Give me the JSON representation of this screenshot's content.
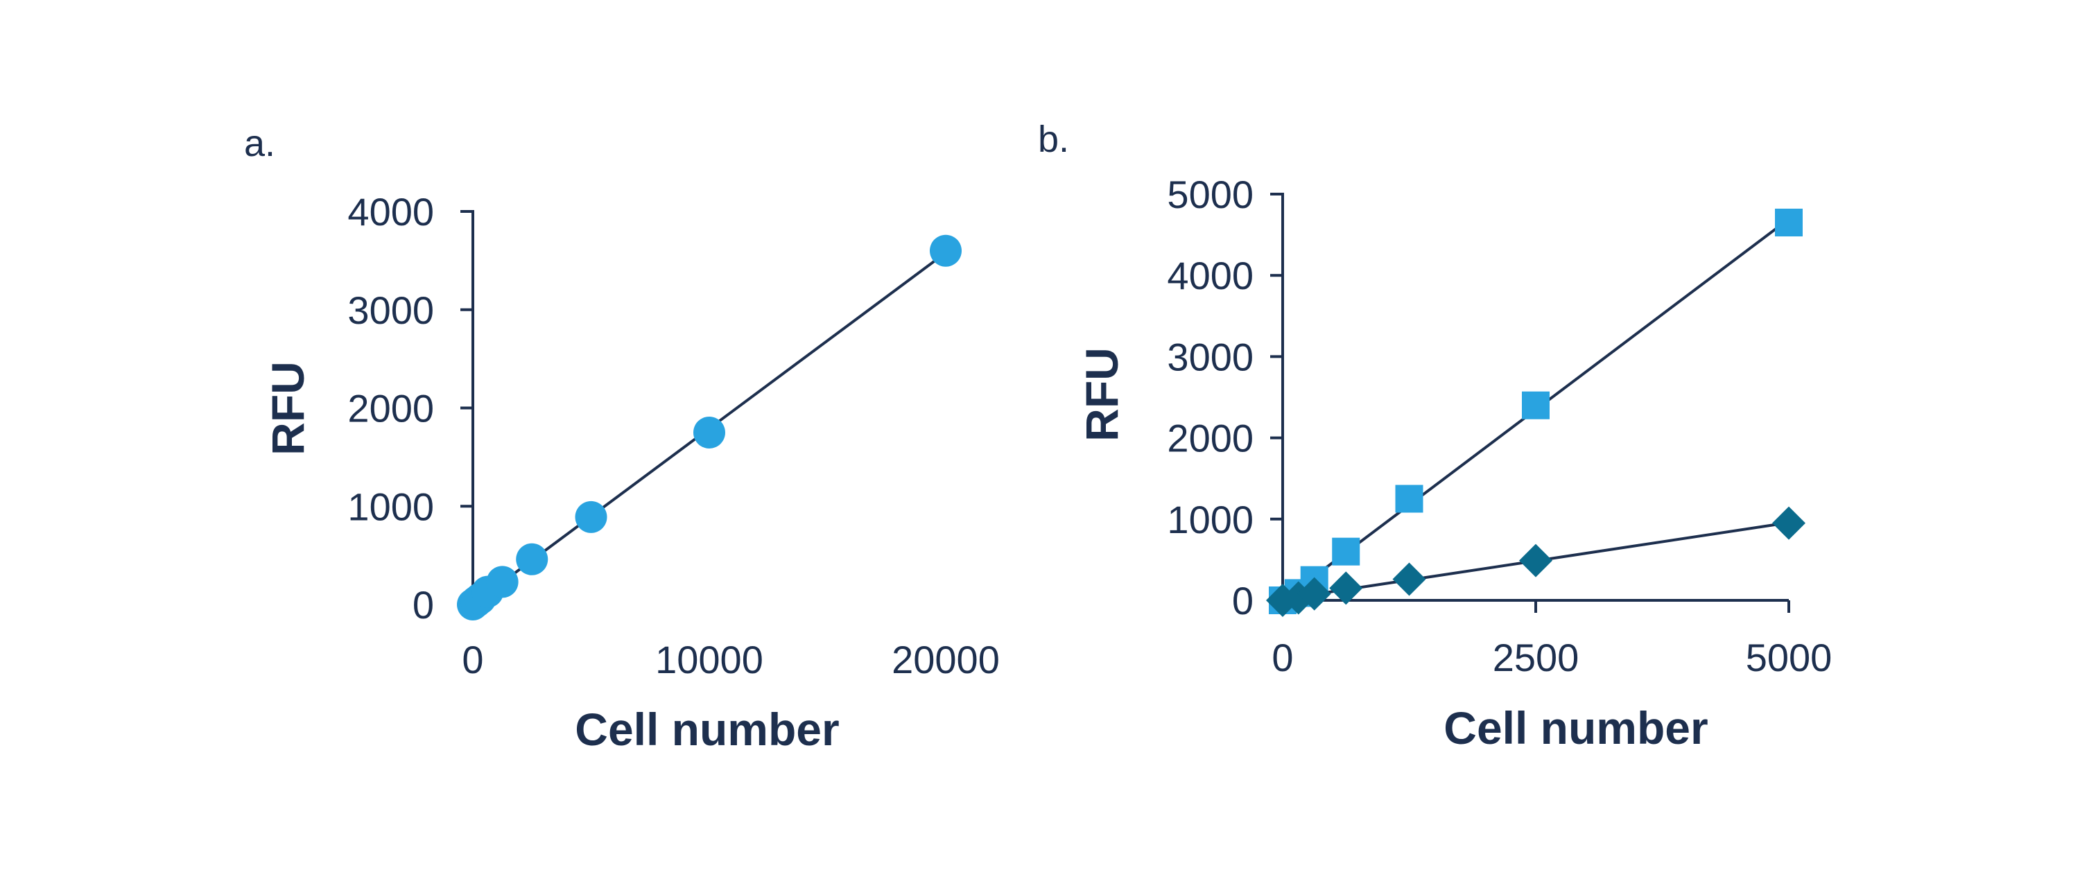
{
  "chart_data": [
    {
      "panel": "a.",
      "type": "scatter",
      "xlabel": "Cell number",
      "ylabel": "RFU",
      "xlim": [
        0,
        20000
      ],
      "ylim": [
        0,
        4000
      ],
      "xticks": [
        "0",
        "10000",
        "20000"
      ],
      "xtick_values": [
        0,
        10000,
        20000
      ],
      "yticks": [
        "0",
        "1000",
        "2000",
        "3000",
        "4000"
      ],
      "ytick_values": [
        0,
        1000,
        2000,
        3000,
        4000
      ],
      "grid": false,
      "trendline": true,
      "series": [
        {
          "marker": "circle",
          "color": "#29a3e0",
          "x": [
            0,
            156,
            313,
            625,
            1250,
            2500,
            5000,
            10000,
            20000
          ],
          "y": [
            0,
            30,
            60,
            130,
            230,
            460,
            890,
            1750,
            3600
          ]
        }
      ]
    },
    {
      "panel": "b.",
      "type": "scatter",
      "xlabel": "Cell number",
      "ylabel": "RFU",
      "xlim": [
        0,
        5000
      ],
      "ylim": [
        0,
        5000
      ],
      "xticks": [
        "0",
        "2500",
        "5000"
      ],
      "xtick_values": [
        0,
        2500,
        5000
      ],
      "yticks": [
        "0",
        "1000",
        "2000",
        "3000",
        "4000",
        "5000"
      ],
      "ytick_values": [
        0,
        1000,
        2000,
        3000,
        4000,
        5000
      ],
      "grid": false,
      "trendline": true,
      "series": [
        {
          "marker": "square",
          "color": "#29a3e0",
          "x": [
            0,
            156,
            313,
            625,
            1250,
            2500,
            5000
          ],
          "y": [
            0,
            90,
            250,
            600,
            1250,
            2400,
            4650
          ]
        },
        {
          "marker": "diamond",
          "color": "#0b6b8c",
          "x": [
            0,
            156,
            313,
            625,
            1250,
            2500,
            5000
          ],
          "y": [
            0,
            30,
            80,
            150,
            260,
            490,
            950
          ]
        }
      ]
    }
  ]
}
